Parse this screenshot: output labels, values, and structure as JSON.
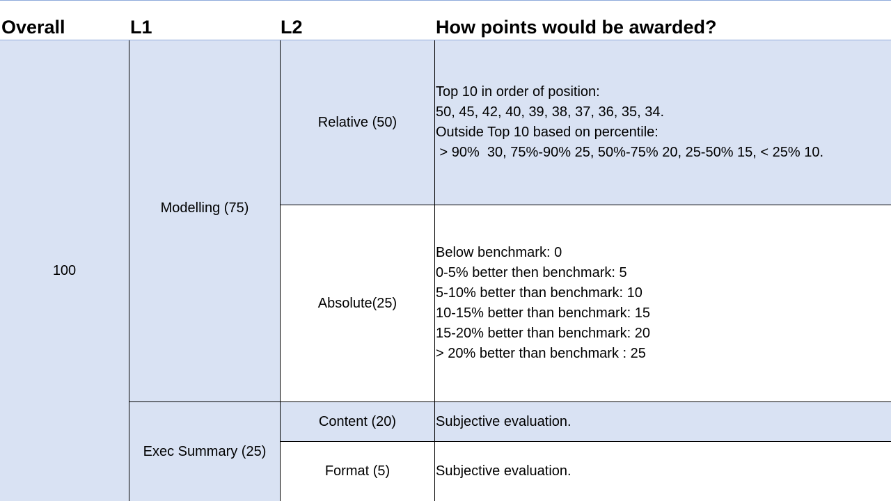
{
  "headers": {
    "overall": "Overall",
    "l1": "L1",
    "l2": "L2",
    "points": "How points would be awarded?"
  },
  "overall_value": "100",
  "l1": {
    "modelling": "Modelling (75)",
    "exec_summary": "Exec Summary (25)"
  },
  "l2": {
    "relative": "Relative (50)",
    "absolute": "Absolute(25)",
    "content": "Content (20)",
    "format": "Format (5)"
  },
  "points": {
    "relative": [
      "Top 10 in order of position:",
      "50, 45, 42, 40, 39, 38, 37, 36, 35, 34.",
      "Outside Top 10 based on percentile:",
      " > 90%  30, 75%-90% 25, 50%-75% 20, 25-50% 15, < 25% 10."
    ],
    "absolute": [
      "Below benchmark: 0",
      "0-5% better then benchmark: 5",
      "5-10% better than benchmark: 10",
      "10-15% better than benchmark: 15",
      "15-20% better than benchmark: 20",
      "> 20% better than benchmark : 25"
    ],
    "content": "Subjective evaluation.",
    "format": "Subjective evaluation."
  },
  "colors": {
    "row_blue": "#d9e2f3",
    "header_rule": "#8eaadb",
    "grid_line": "#000000"
  }
}
